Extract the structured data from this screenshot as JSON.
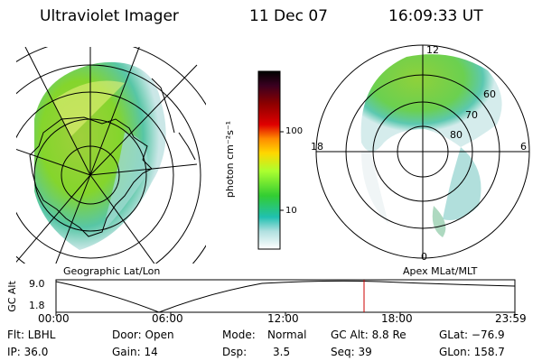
{
  "header": {
    "instrument": "Ultraviolet Imager",
    "date": "11 Dec 07",
    "time": "16:09:33 UT"
  },
  "colorbar": {
    "unit_label": "photon cm⁻²s⁻¹",
    "ticks": [
      "100",
      "10"
    ],
    "scale": "log",
    "colors": [
      "#000000",
      "#8b0000",
      "#ff0000",
      "#ff8c00",
      "#ffd700",
      "#adff2f",
      "#32cd32",
      "#20b2aa",
      "#00ced1",
      "#e0e0e0",
      "#ffffff"
    ]
  },
  "left_map": {
    "label": "Geographic Lat/Lon"
  },
  "right_map": {
    "label": "Apex MLat/MLT",
    "mlt_labels": [
      "12",
      "18",
      "6",
      "0"
    ],
    "lat_labels": [
      "60",
      "70",
      "80"
    ]
  },
  "altitude_plot": {
    "ylabel": "GC Alt",
    "yticks": [
      "9.0",
      "1.8"
    ],
    "xticks": [
      "00:00",
      "06:00",
      "12:00",
      "18:00",
      "23:59"
    ],
    "current_time_marker_color": "#cc0000"
  },
  "footer": {
    "row1": {
      "filter": "Flt: LBHL",
      "door": "Door: Open",
      "mode_label": "Mode:",
      "mode_value": "Normal",
      "gc_alt": "GC Alt: 8.8 Re",
      "glat": "GLat: −76.9"
    },
    "row2": {
      "ip": "IP: 36.0",
      "gain": "Gain: 14",
      "dsp_label": "Dsp:",
      "dsp_value": "3.5",
      "seq": "Seq: 39",
      "glon": "GLon: 158.7"
    }
  }
}
